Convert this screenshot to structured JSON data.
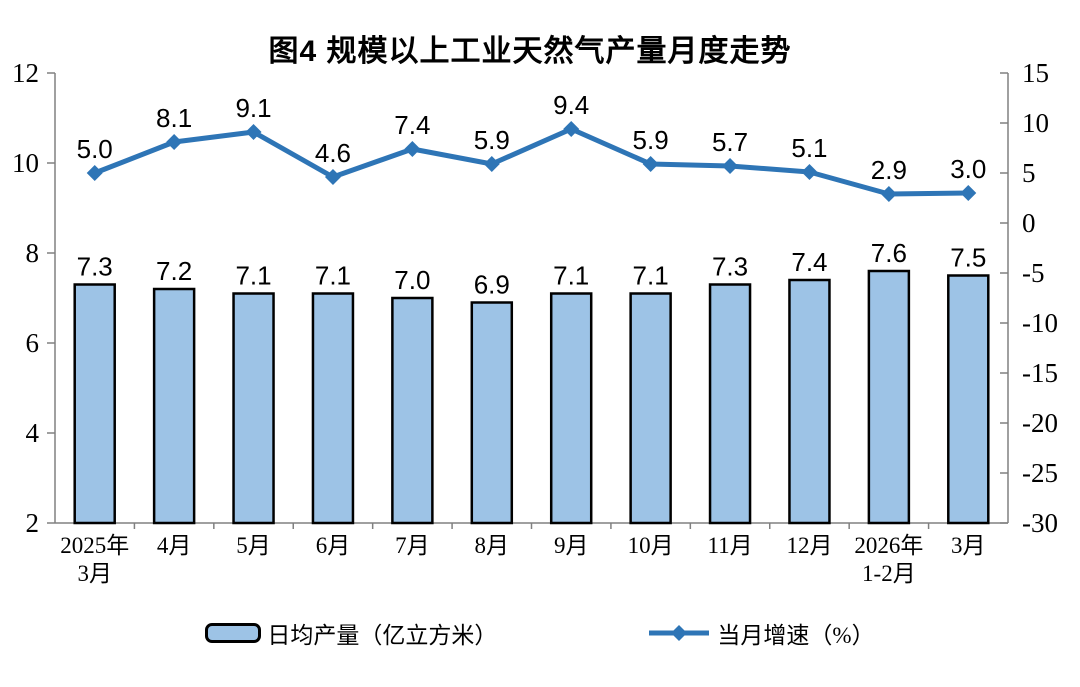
{
  "chart_data": {
    "type": "bar",
    "subtype": "bar-line-combo",
    "title": "图4  规模以上工业天然气产量月度走势",
    "categories": [
      "2025年\n3月",
      "4月",
      "5月",
      "6月",
      "7月",
      "8月",
      "9月",
      "10月",
      "11月",
      "12月",
      "2026年\n1-2月",
      "3月"
    ],
    "series": [
      {
        "name": "日均产量（亿立方米）",
        "type": "bar",
        "axis": "left",
        "values": [
          7.3,
          7.2,
          7.1,
          7.1,
          7.0,
          6.9,
          7.1,
          7.1,
          7.3,
          7.4,
          7.6,
          7.5
        ],
        "labels": [
          "7.3",
          "7.2",
          "7.1",
          "7.1",
          "7.0",
          "6.9",
          "7.1",
          "7.1",
          "7.3",
          "7.4",
          "7.6",
          "7.5"
        ],
        "fill_color": "#9DC3E6",
        "border_color": "#000000"
      },
      {
        "name": "当月增速（%）",
        "type": "line",
        "axis": "right",
        "marker": "diamond",
        "values": [
          5.0,
          8.1,
          9.1,
          4.6,
          7.4,
          5.9,
          9.4,
          5.9,
          5.7,
          5.1,
          2.9,
          3.0
        ],
        "labels": [
          "5.0",
          "8.1",
          "9.1",
          "4.6",
          "7.4",
          "5.9",
          "9.4",
          "5.9",
          "5.7",
          "5.1",
          "2.9",
          "3.0"
        ],
        "color": "#2E75B6"
      }
    ],
    "left_axis": {
      "min": 2,
      "max": 12,
      "ticks": [
        2,
        4,
        6,
        8,
        10,
        12
      ]
    },
    "right_axis": {
      "min": -30,
      "max": 15,
      "ticks": [
        15,
        10,
        5,
        0,
        -5,
        -10,
        -15,
        -20,
        -25,
        -30
      ]
    },
    "grid": false,
    "legend_position": "bottom",
    "axis_color": "#808080",
    "label_color": "#000000"
  }
}
